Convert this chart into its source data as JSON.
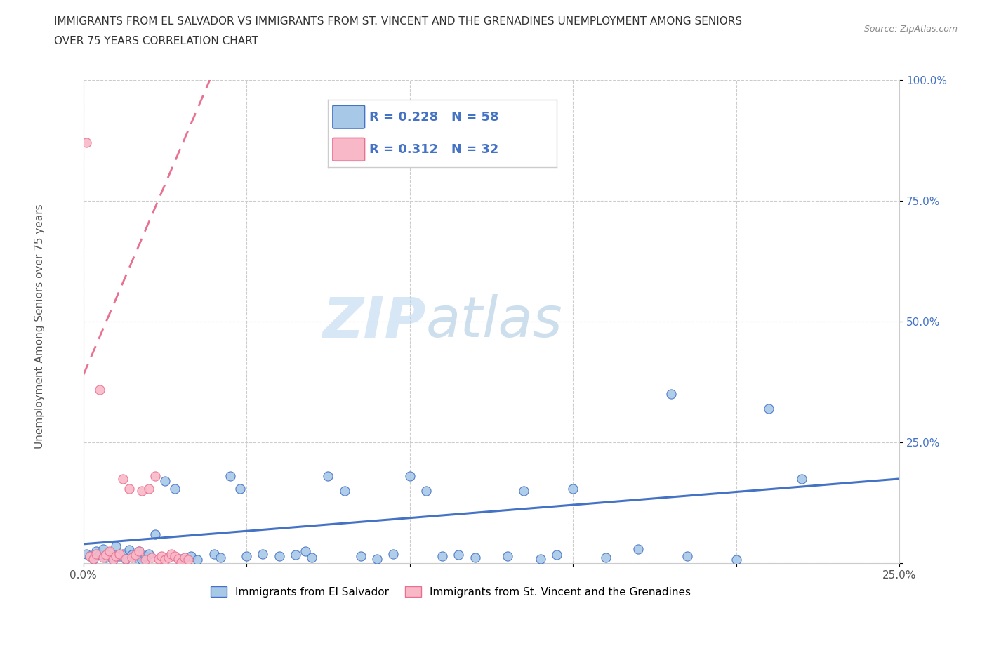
{
  "title_line1": "IMMIGRANTS FROM EL SALVADOR VS IMMIGRANTS FROM ST. VINCENT AND THE GRENADINES UNEMPLOYMENT AMONG SENIORS",
  "title_line2": "OVER 75 YEARS CORRELATION CHART",
  "source_text": "Source: ZipAtlas.com",
  "ylabel": "Unemployment Among Seniors over 75 years",
  "watermark_zip": "ZIP",
  "watermark_atlas": "atlas",
  "xlim": [
    0.0,
    0.25
  ],
  "ylim": [
    0.0,
    1.0
  ],
  "R_blue": 0.228,
  "N_blue": 58,
  "R_pink": 0.312,
  "N_pink": 32,
  "color_blue": "#a8c8e8",
  "color_pink": "#f9b8c8",
  "trendline_blue": "#4472c4",
  "trendline_pink": "#e87090",
  "legend_text_color": "#4472c4",
  "blue_scatter": [
    [
      0.001,
      0.02
    ],
    [
      0.002,
      0.015
    ],
    [
      0.003,
      0.01
    ],
    [
      0.004,
      0.025
    ],
    [
      0.005,
      0.018
    ],
    [
      0.006,
      0.03
    ],
    [
      0.007,
      0.012
    ],
    [
      0.008,
      0.022
    ],
    [
      0.009,
      0.008
    ],
    [
      0.01,
      0.035
    ],
    [
      0.011,
      0.015
    ],
    [
      0.012,
      0.02
    ],
    [
      0.013,
      0.01
    ],
    [
      0.014,
      0.028
    ],
    [
      0.015,
      0.018
    ],
    [
      0.016,
      0.012
    ],
    [
      0.017,
      0.025
    ],
    [
      0.018,
      0.008
    ],
    [
      0.019,
      0.015
    ],
    [
      0.02,
      0.02
    ],
    [
      0.022,
      0.06
    ],
    [
      0.025,
      0.17
    ],
    [
      0.028,
      0.155
    ],
    [
      0.03,
      0.01
    ],
    [
      0.033,
      0.015
    ],
    [
      0.035,
      0.008
    ],
    [
      0.04,
      0.02
    ],
    [
      0.042,
      0.012
    ],
    [
      0.045,
      0.18
    ],
    [
      0.048,
      0.155
    ],
    [
      0.05,
      0.015
    ],
    [
      0.055,
      0.02
    ],
    [
      0.06,
      0.015
    ],
    [
      0.065,
      0.018
    ],
    [
      0.068,
      0.025
    ],
    [
      0.07,
      0.012
    ],
    [
      0.075,
      0.18
    ],
    [
      0.08,
      0.15
    ],
    [
      0.085,
      0.015
    ],
    [
      0.09,
      0.01
    ],
    [
      0.095,
      0.02
    ],
    [
      0.1,
      0.18
    ],
    [
      0.105,
      0.15
    ],
    [
      0.11,
      0.015
    ],
    [
      0.115,
      0.018
    ],
    [
      0.12,
      0.012
    ],
    [
      0.13,
      0.015
    ],
    [
      0.135,
      0.15
    ],
    [
      0.14,
      0.01
    ],
    [
      0.145,
      0.018
    ],
    [
      0.15,
      0.155
    ],
    [
      0.16,
      0.012
    ],
    [
      0.17,
      0.03
    ],
    [
      0.18,
      0.35
    ],
    [
      0.185,
      0.015
    ],
    [
      0.2,
      0.008
    ],
    [
      0.21,
      0.32
    ],
    [
      0.22,
      0.175
    ]
  ],
  "pink_scatter": [
    [
      0.001,
      0.87
    ],
    [
      0.002,
      0.015
    ],
    [
      0.003,
      0.01
    ],
    [
      0.004,
      0.02
    ],
    [
      0.005,
      0.36
    ],
    [
      0.006,
      0.012
    ],
    [
      0.007,
      0.018
    ],
    [
      0.008,
      0.025
    ],
    [
      0.009,
      0.008
    ],
    [
      0.01,
      0.015
    ],
    [
      0.011,
      0.02
    ],
    [
      0.012,
      0.175
    ],
    [
      0.013,
      0.01
    ],
    [
      0.014,
      0.155
    ],
    [
      0.015,
      0.012
    ],
    [
      0.016,
      0.018
    ],
    [
      0.017,
      0.025
    ],
    [
      0.018,
      0.15
    ],
    [
      0.019,
      0.008
    ],
    [
      0.02,
      0.155
    ],
    [
      0.021,
      0.012
    ],
    [
      0.022,
      0.18
    ],
    [
      0.023,
      0.01
    ],
    [
      0.024,
      0.015
    ],
    [
      0.025,
      0.008
    ],
    [
      0.026,
      0.012
    ],
    [
      0.027,
      0.02
    ],
    [
      0.028,
      0.015
    ],
    [
      0.029,
      0.01
    ],
    [
      0.03,
      0.002
    ],
    [
      0.031,
      0.012
    ],
    [
      0.032,
      0.008
    ]
  ],
  "blue_trend_x": [
    0.0,
    0.25
  ],
  "blue_trend_y": [
    0.04,
    0.175
  ],
  "pink_trend_x": [
    0.0,
    0.04
  ],
  "pink_trend_y": [
    0.39,
    1.02
  ]
}
